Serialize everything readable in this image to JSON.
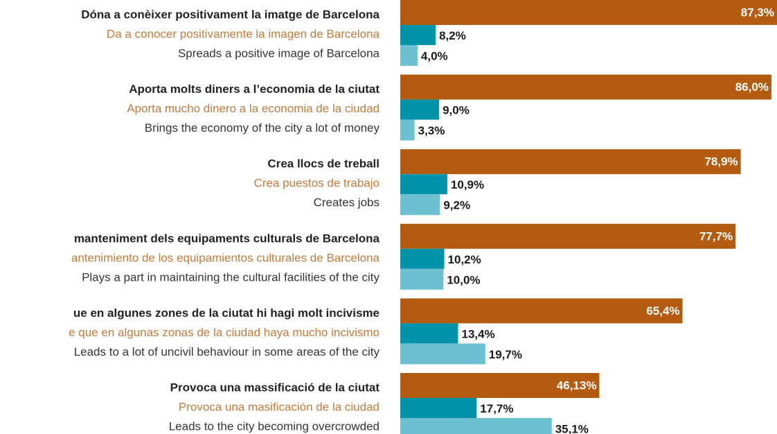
{
  "chart_data": {
    "type": "bar",
    "orientation": "horizontal",
    "categories": [
      [
        "Dóna a conèixer positivament la imatge de Barcelona",
        "Da a conocer positivamente la imagen de Barcelona",
        "Spreads a positive image of Barcelona"
      ],
      [
        "Aporta molts diners a l’economia de la ciutat",
        "Aporta mucho dinero a la economia de la ciudad",
        "Brings the economy of the city a lot of money"
      ],
      [
        "Crea llocs de treball",
        "Crea puestos de trabajo",
        "Creates jobs"
      ],
      [
        "manteniment dels equipaments culturals de Barcelona",
        "antenimiento de los equipamientos culturales  de Barcelona",
        "Plays a part in maintaining the cultural facilities of the city"
      ],
      [
        "ue en algunes zones de la ciutat hi hagi molt incivisme",
        "e que en algunas zonas de la ciudad haya mucho incivismo",
        "Leads to a lot of uncivil behaviour in some areas of the city"
      ],
      [
        "Provoca una massificació de la ciutat",
        "Provoca una masificación de la ciudad",
        "Leads to the city becoming overcrowded"
      ]
    ],
    "series": [
      {
        "color": "#b35b10",
        "values": [
          87.3,
          86.0,
          78.9,
          77.7,
          65.4,
          46.13
        ],
        "value_labels": [
          "87,3%",
          "86,0%",
          "78,9%",
          "77,7%",
          "65,4%",
          "46,13%"
        ]
      },
      {
        "color": "#0093aa",
        "values": [
          8.2,
          9.0,
          10.9,
          10.2,
          13.4,
          17.7
        ],
        "value_labels": [
          "8,2%",
          "9,0%",
          "10,9%",
          "10,2%",
          "13,4%",
          "17,7%"
        ]
      },
      {
        "color": "#6cc0d1",
        "values": [
          4.0,
          3.3,
          9.2,
          10.0,
          19.7,
          35.1
        ],
        "value_labels": [
          "4,0%",
          "3,3%",
          "9,2%",
          "10,0%",
          "19,7%",
          "35,1%"
        ]
      }
    ],
    "xlim": [
      0,
      90
    ],
    "label_colors": [
      "#222222",
      "#c47a3c",
      "#333333"
    ]
  }
}
